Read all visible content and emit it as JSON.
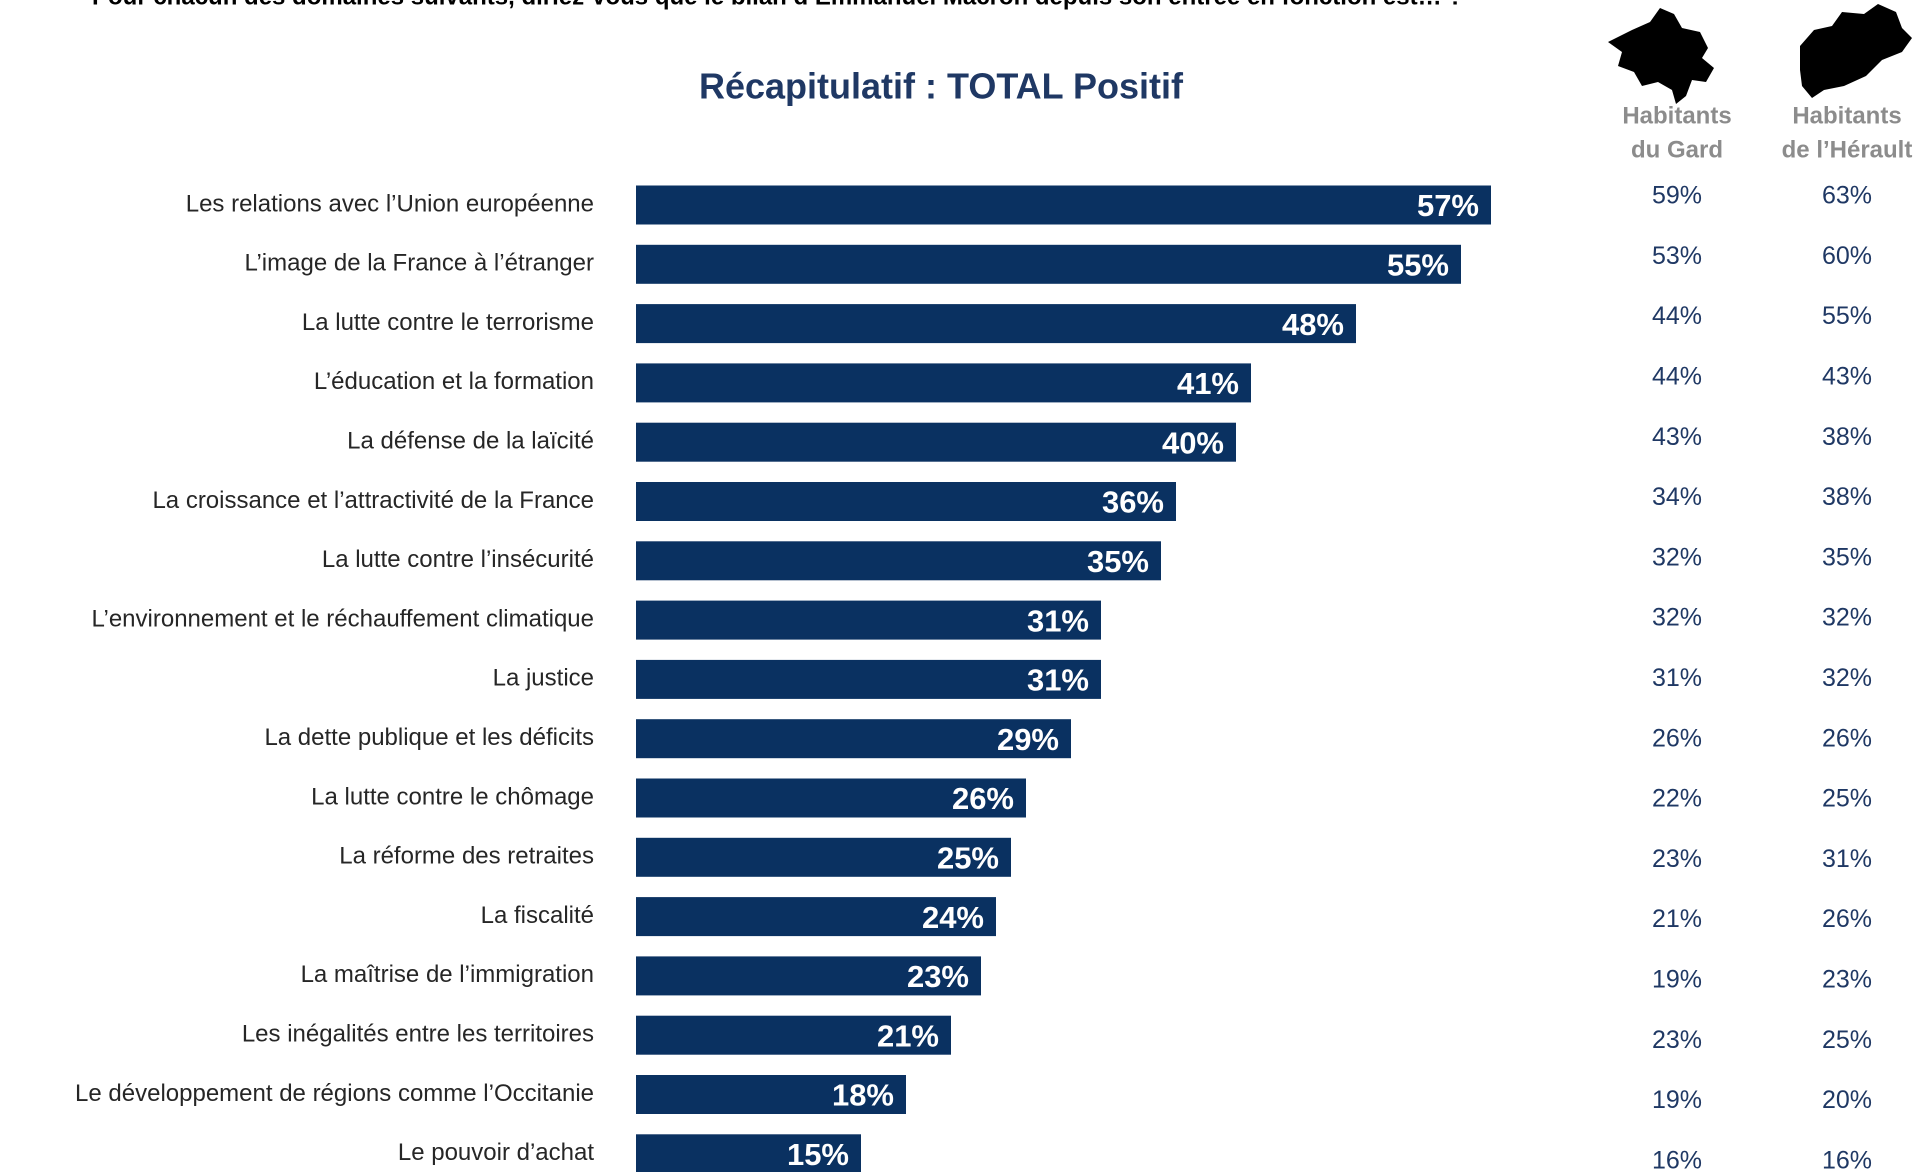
{
  "question": "Pour chacun des domaines suivants, diriez-vous que le bilan d’Emmanuel Macron depuis son entrée en fonction est… ?",
  "chart_data": {
    "type": "bar",
    "orientation": "horizontal",
    "title": "Récapitulatif : TOTAL Positif",
    "color": "#0a3161",
    "categories": [
      "Les relations avec l’Union européenne",
      "L’image de la France à l’étranger",
      "La lutte contre le terrorisme",
      "L’éducation et la formation",
      "La défense de la laïcité",
      "La croissance et l’attractivité de la France",
      "La lutte contre l’insécurité",
      "L’environnement et le réchauffement climatique",
      "La justice",
      "La dette publique et les déficits",
      "La lutte contre le chômage",
      "La réforme des retraites",
      "La fiscalité",
      "La maîtrise de l’immigration",
      "Les inégalités entre les territoires",
      "Le développement de régions comme l’Occitanie",
      "Le pouvoir d’achat"
    ],
    "values": [
      57,
      55,
      48,
      41,
      40,
      36,
      35,
      31,
      31,
      29,
      26,
      25,
      24,
      23,
      21,
      18,
      15
    ],
    "value_labels": [
      "57%",
      "55%",
      "48%",
      "41%",
      "40%",
      "36%",
      "35%",
      "31%",
      "31%",
      "29%",
      "26%",
      "25%",
      "24%",
      "23%",
      "21%",
      "18%",
      "15%"
    ],
    "columns": [
      {
        "name": [
          "Habitants",
          "du Gard"
        ],
        "color": "#1f3864",
        "values": [
          59,
          53,
          44,
          44,
          43,
          34,
          32,
          32,
          31,
          26,
          22,
          23,
          21,
          19,
          23,
          19,
          16
        ],
        "value_labels": [
          "59%",
          "53%",
          "44%",
          "44%",
          "43%",
          "34%",
          "32%",
          "32%",
          "31%",
          "26%",
          "22%",
          "23%",
          "21%",
          "19%",
          "23%",
          "19%",
          "16%"
        ]
      },
      {
        "name": [
          "Habitants",
          "de l’Hérault"
        ],
        "color": "#1f3864",
        "values": [
          63,
          60,
          55,
          43,
          38,
          38,
          35,
          32,
          32,
          26,
          25,
          31,
          26,
          23,
          25,
          20,
          16
        ],
        "value_labels": [
          "63%",
          "60%",
          "55%",
          "43%",
          "38%",
          "38%",
          "35%",
          "32%",
          "32%",
          "26%",
          "25%",
          "31%",
          "26%",
          "23%",
          "25%",
          "20%",
          "16%"
        ]
      }
    ]
  }
}
